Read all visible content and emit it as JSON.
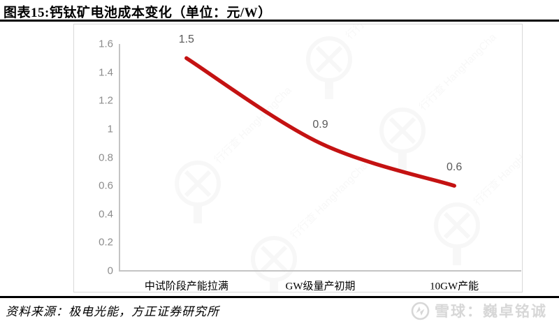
{
  "header": {
    "title": "图表15:钙钛矿电池成本变化（单位：元/W）"
  },
  "chart_data": {
    "type": "line",
    "title": "钙钛矿电池成本变化",
    "unit": "元/W",
    "categories": [
      "中试阶段产能拉满",
      "GW级量产初期",
      "10GW产能"
    ],
    "values": [
      1.5,
      0.9,
      0.6
    ],
    "value_labels": [
      "1.5",
      "0.9",
      "0.6"
    ],
    "yticks": [
      "1.6",
      "1.4",
      "1.2",
      "1",
      "0.8",
      "0.6",
      "0.4",
      "0.2",
      "0"
    ],
    "ylim": [
      0,
      1.6
    ],
    "line_color": "#c41212",
    "axis_color": "#c4c4c4",
    "grid": false,
    "legend_position": "none"
  },
  "watermark": {
    "text": "行行查 HangHangCha"
  },
  "footer": {
    "source": "资料来源：极电光能，方正证券研究所",
    "account": "雪球：巍卓铭诚"
  }
}
